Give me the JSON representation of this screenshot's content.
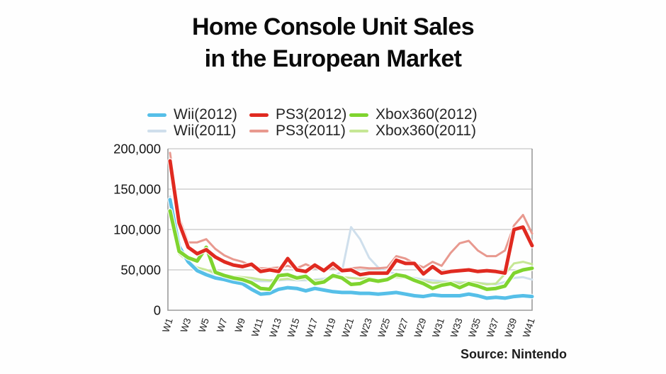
{
  "title": {
    "line1": "Home Console Unit Sales",
    "line2": "in the European Market"
  },
  "source_label": "Source: Nintendo",
  "chart_data": {
    "type": "line",
    "title": "Home Console Unit Sales in the European Market",
    "xlabel": "",
    "ylabel": "",
    "x_unit": "week",
    "x_range": [
      1,
      41
    ],
    "x_tick_labels": [
      "W1",
      "W3",
      "W5",
      "W7",
      "W9",
      "W11",
      "W13",
      "W15",
      "W17",
      "W19",
      "W21",
      "W23",
      "W25",
      "W27",
      "W29",
      "W31",
      "W33",
      "W35",
      "W37",
      "W39",
      "W41"
    ],
    "ylim": [
      0,
      200000
    ],
    "y_ticks": [
      0,
      50000,
      100000,
      150000,
      200000
    ],
    "y_tick_labels": [
      "0",
      "50,000",
      "100,000",
      "150,000",
      "200,000"
    ],
    "grid": "horizontal",
    "legend_position": "top",
    "series": [
      {
        "name": "Wii(2011)",
        "color": "#cfdfec",
        "line_width": 3,
        "legend_row": 1,
        "legend_col": 0,
        "values": [
          141000,
          75000,
          62000,
          51000,
          46000,
          43000,
          41000,
          39000,
          38000,
          37000,
          36000,
          36000,
          37000,
          38000,
          37000,
          37000,
          38000,
          39000,
          42000,
          48000,
          103000,
          88000,
          65000,
          53000,
          48000,
          45000,
          42000,
          40000,
          38000,
          37000,
          36000,
          35000,
          35000,
          34000,
          34000,
          33000,
          32000,
          35000,
          40000,
          41000,
          38000
        ]
      },
      {
        "name": "Xbox360(2011)",
        "color": "#c6e795",
        "line_width": 3,
        "legend_row": 1,
        "legend_col": 2,
        "values": [
          118000,
          70000,
          60000,
          53000,
          50000,
          46000,
          44000,
          42000,
          41000,
          40000,
          38000,
          37000,
          38000,
          39000,
          38000,
          39000,
          37000,
          37000,
          40000,
          41000,
          40000,
          39000,
          40000,
          38000,
          39000,
          41000,
          40000,
          38000,
          36000,
          34000,
          34000,
          35000,
          33000,
          35000,
          34000,
          32000,
          33000,
          45000,
          58000,
          60000,
          57000
        ]
      },
      {
        "name": "PS3(2011)",
        "color": "#e8998f",
        "line_width": 3,
        "legend_row": 1,
        "legend_col": 1,
        "values": [
          195000,
          115000,
          84000,
          84000,
          88000,
          76000,
          68000,
          63000,
          60000,
          55000,
          52000,
          52000,
          53000,
          55000,
          52000,
          57000,
          52000,
          51000,
          52000,
          51000,
          52000,
          53000,
          52000,
          52000,
          53000,
          67000,
          64000,
          58000,
          53000,
          60000,
          55000,
          71000,
          83000,
          86000,
          74000,
          67000,
          67000,
          74000,
          105000,
          118000,
          95000
        ]
      },
      {
        "name": "Wii(2012)",
        "color": "#56bfe8",
        "line_width": 5,
        "legend_row": 0,
        "legend_col": 0,
        "values": [
          137000,
          79000,
          60000,
          49000,
          44000,
          40000,
          38000,
          35000,
          33000,
          26000,
          20000,
          21000,
          26000,
          28000,
          27000,
          24000,
          27000,
          25000,
          23000,
          22000,
          22000,
          21000,
          21000,
          20000,
          21000,
          22000,
          20000,
          18000,
          17000,
          19000,
          18000,
          18000,
          18000,
          20000,
          18000,
          15000,
          16000,
          15000,
          17000,
          18000,
          17000
        ]
      },
      {
        "name": "Xbox360(2012)",
        "color": "#7fd42f",
        "line_width": 5,
        "legend_row": 0,
        "legend_col": 2,
        "values": [
          123000,
          73000,
          65000,
          61000,
          78000,
          47000,
          43000,
          40000,
          38000,
          34000,
          27000,
          26000,
          43000,
          44000,
          40000,
          42000,
          33000,
          35000,
          43000,
          40000,
          32000,
          33000,
          38000,
          36000,
          38000,
          44000,
          42000,
          37000,
          33000,
          27000,
          31000,
          33000,
          28000,
          33000,
          30000,
          26000,
          27000,
          30000,
          46000,
          50000,
          52000
        ]
      },
      {
        "name": "PS3(2012)",
        "color": "#e02a20",
        "line_width": 5,
        "legend_row": 0,
        "legend_col": 1,
        "values": [
          185000,
          108000,
          78000,
          70000,
          75000,
          66000,
          60000,
          56000,
          54000,
          57000,
          48000,
          50000,
          48000,
          64000,
          50000,
          48000,
          56000,
          49000,
          58000,
          49000,
          50000,
          44000,
          46000,
          46000,
          46000,
          62000,
          58000,
          58000,
          45000,
          54000,
          46000,
          48000,
          49000,
          50000,
          48000,
          49000,
          48000,
          46000,
          100000,
          103000,
          80000
        ]
      }
    ]
  }
}
